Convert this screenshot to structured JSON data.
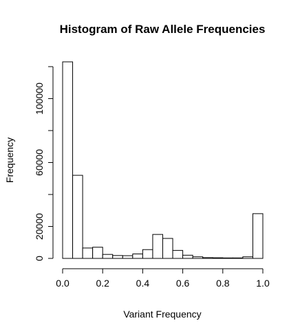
{
  "chart_data": {
    "type": "bar",
    "title": "Histogram of Raw Allele Frequencies",
    "xlabel": "Variant Frequency",
    "ylabel": "Frequency",
    "xlim": [
      0,
      1
    ],
    "ylim": [
      0,
      123000
    ],
    "x_ticks": [
      0.0,
      0.2,
      0.4,
      0.6,
      0.8,
      1.0
    ],
    "x_tick_labels": [
      "0.0",
      "0.2",
      "0.4",
      "0.6",
      "0.8",
      "1.0"
    ],
    "y_ticks": [
      0,
      20000,
      60000,
      100000
    ],
    "y_tick_labels": [
      "0",
      "20000",
      "60000",
      "100000"
    ],
    "grid": false,
    "bin_edges": [
      0.0,
      0.05,
      0.1,
      0.15,
      0.2,
      0.25,
      0.3,
      0.35,
      0.4,
      0.45,
      0.5,
      0.55,
      0.6,
      0.65,
      0.7,
      0.75,
      0.8,
      0.85,
      0.9,
      0.95,
      1.0
    ],
    "values": [
      123000,
      52000,
      6500,
      7000,
      2500,
      1800,
      1700,
      2800,
      5500,
      15000,
      12500,
      5000,
      2000,
      1000,
      500,
      400,
      300,
      300,
      1000,
      28000
    ],
    "bar_fill": "#ffffff",
    "bar_stroke": "#000000"
  }
}
